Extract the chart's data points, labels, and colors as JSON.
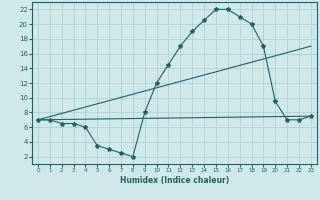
{
  "xlabel": "Humidex (Indice chaleur)",
  "ylabel": "",
  "bg_color": "#cfe8e8",
  "grid_color": "#aacccc",
  "line_color": "#1a6666",
  "xlim": [
    -0.5,
    23.5
  ],
  "ylim": [
    1,
    23
  ],
  "xticks": [
    0,
    1,
    2,
    3,
    4,
    5,
    6,
    7,
    8,
    9,
    10,
    11,
    12,
    13,
    14,
    15,
    16,
    17,
    18,
    19,
    20,
    21,
    22,
    23
  ],
  "yticks": [
    2,
    4,
    6,
    8,
    10,
    12,
    14,
    16,
    18,
    20,
    22
  ],
  "curve1_x": [
    0,
    1,
    2,
    3,
    4,
    5,
    6,
    7,
    8,
    9,
    10,
    11,
    12,
    13,
    14,
    15,
    16,
    17,
    18,
    19,
    20,
    21,
    22,
    23
  ],
  "curve1_y": [
    7,
    7,
    6.5,
    6.5,
    6,
    3.5,
    3,
    2.5,
    2,
    8,
    12,
    14.5,
    17,
    19,
    20.5,
    22,
    22,
    21,
    20,
    17,
    9.5,
    7,
    7,
    7.5
  ],
  "curve2_x": [
    0,
    23
  ],
  "curve2_y": [
    7,
    7.5
  ],
  "curve3_x": [
    0,
    23
  ],
  "curve3_y": [
    7,
    17
  ]
}
